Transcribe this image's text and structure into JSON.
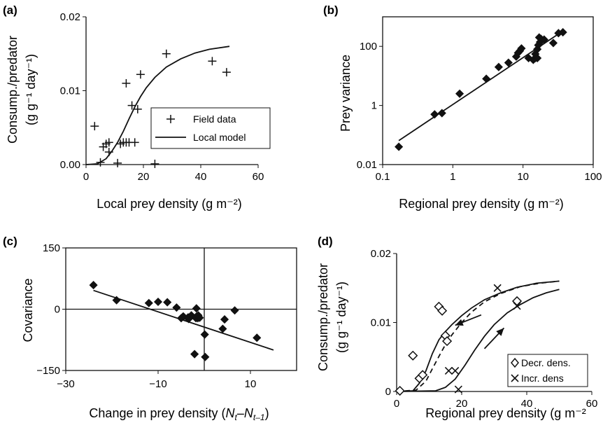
{
  "chart_data": [
    {
      "panel": "(a)",
      "type": "scatter",
      "xlabel": "Local prey density (g m⁻²)",
      "ylabel_line1": "Consump./predator",
      "ylabel_line2": "(g g⁻¹ day⁻¹)",
      "xlim": [
        0,
        60
      ],
      "ylim": [
        0,
        0.02
      ],
      "xticks": [
        "0",
        "20",
        "40",
        "60"
      ],
      "yticks": [
        "0.00",
        "0.01",
        "0.02"
      ],
      "legend_position": "lower-right",
      "series": [
        {
          "name": "Field data",
          "marker": "+",
          "x": [
            3,
            5,
            6,
            7,
            8,
            8,
            11,
            12,
            13,
            14,
            14,
            15,
            16,
            17,
            18,
            19,
            24,
            28,
            44,
            49
          ],
          "y": [
            0.0052,
            0.0003,
            0.0024,
            0.0028,
            0.0017,
            0.003,
            0.0002,
            0.0028,
            0.003,
            0.011,
            0.003,
            0.003,
            0.008,
            0.003,
            0.0075,
            0.0122,
            0.0001,
            0.015,
            0.014,
            0.0125
          ]
        },
        {
          "name": "Local model",
          "style": "line",
          "x": [
            0,
            4,
            7,
            9,
            11,
            13,
            15,
            17,
            19,
            21,
            24,
            28,
            33,
            38,
            43,
            50
          ],
          "y": [
            0.0,
            0.0001,
            0.0008,
            0.0018,
            0.003,
            0.0045,
            0.0062,
            0.0078,
            0.0092,
            0.0104,
            0.0118,
            0.0132,
            0.0143,
            0.0151,
            0.0156,
            0.016
          ]
        }
      ]
    },
    {
      "panel": "(b)",
      "type": "scatter",
      "xscale": "log",
      "yscale": "log",
      "xlabel": "Regional prey density (g m⁻²)",
      "ylabel": "Prey variance",
      "xlim": [
        0.1,
        100
      ],
      "ylim": [
        0.01,
        1000
      ],
      "xticks": [
        "0.1",
        "1",
        "10",
        "100"
      ],
      "yticks": [
        "0.01",
        "1",
        "100"
      ],
      "series": [
        {
          "name": "",
          "marker": "diamond",
          "x": [
            0.17,
            0.55,
            0.7,
            1.25,
            3.0,
            4.5,
            6.2,
            8.0,
            8.5,
            9.0,
            9.5,
            12,
            14,
            15,
            15,
            16,
            16,
            16.5,
            17,
            17.5,
            18,
            20,
            27,
            32,
            37
          ],
          "y": [
            0.04,
            0.5,
            0.55,
            2.5,
            8,
            20,
            28,
            45,
            60,
            70,
            85,
            40,
            35,
            40,
            55,
            40,
            80,
            110,
            200,
            140,
            180,
            170,
            130,
            280,
            300
          ]
        },
        {
          "name": "",
          "style": "line",
          "x": [
            0.17,
            37
          ],
          "y": [
            0.065,
            330
          ]
        }
      ]
    },
    {
      "panel": "(c)",
      "type": "scatter",
      "xlabel_prefix": "Change in prey density (",
      "xlabel_nt": "N",
      "xlabel_sub_t": "t",
      "xlabel_minus": "–",
      "xlabel_sub_t1": "t–1",
      "xlabel_close": ")",
      "ylabel": "Covariance",
      "xlim": [
        -30,
        20
      ],
      "ylim": [
        -150,
        150
      ],
      "xticks": [
        "−30",
        "−10",
        "10"
      ],
      "yticks": [
        "150",
        "0",
        "−150"
      ],
      "series": [
        {
          "name": "",
          "marker": "diamond",
          "x": [
            -24,
            -19,
            -12,
            -10,
            -8,
            -6,
            -5,
            -4.6,
            -4.5,
            -3.5,
            -3.4,
            -2.8,
            -2.1,
            -1.8,
            -1.7,
            -1.7,
            -1.4,
            -1.3,
            -1.0,
            0.1,
            0.2,
            4.0,
            4.4,
            6.6,
            11.4
          ],
          "y": [
            59,
            22,
            15,
            18,
            17,
            4,
            -22,
            -18,
            -18,
            -20,
            -24,
            -15,
            -110,
            -22,
            -18,
            2,
            -22,
            -15,
            -21,
            -62,
            -117,
            -48,
            -25,
            -3,
            -70
          ]
        },
        {
          "name": "",
          "style": "line",
          "x": [
            -24,
            15
          ],
          "y": [
            46,
            -100
          ]
        }
      ]
    },
    {
      "panel": "(d)",
      "type": "scatter",
      "xlabel": "Regional prey density (g m⁻²",
      "ylabel_line1": "Consump./predator",
      "ylabel_line2": "(g g⁻¹ day⁻¹)",
      "xlim": [
        0,
        60
      ],
      "ylim": [
        0,
        0.02
      ],
      "xticks": [
        "0",
        "20",
        "40",
        "60"
      ],
      "yticks": [
        "0",
        "0.01",
        "0.02"
      ],
      "legend_position": "lower-right",
      "series": [
        {
          "name": "Decr. dens.",
          "marker": "open-diamond",
          "x": [
            1,
            5,
            7,
            8,
            13,
            14,
            15,
            15.5,
            37
          ],
          "y": [
            0.0001,
            0.0052,
            0.0019,
            0.0024,
            0.0123,
            0.0117,
            0.0081,
            0.0073,
            0.0131
          ]
        },
        {
          "name": "Incr. dens",
          "marker": "x",
          "x": [
            16,
            18,
            19,
            31,
            37
          ],
          "y": [
            0.003,
            0.003,
            0.0003,
            0.015,
            0.0124
          ]
        },
        {
          "name": "",
          "style": "line",
          "x": [
            0,
            5,
            7,
            9,
            11,
            13,
            15,
            17,
            20,
            23,
            27,
            32,
            37,
            43,
            50
          ],
          "y": [
            0.0,
            0.0001,
            0.0012,
            0.003,
            0.0055,
            0.0075,
            0.0087,
            0.0097,
            0.011,
            0.0121,
            0.0133,
            0.0143,
            0.0151,
            0.0157,
            0.016
          ]
        },
        {
          "name": "",
          "style": "dashed",
          "x": [
            0,
            6,
            9,
            11,
            13,
            15,
            17,
            20,
            23,
            27,
            32,
            38,
            44,
            50
          ],
          "y": [
            0.0,
            0.0002,
            0.0015,
            0.0033,
            0.0051,
            0.0068,
            0.0082,
            0.01,
            0.0115,
            0.013,
            0.0142,
            0.0152,
            0.0157,
            0.016
          ]
        },
        {
          "name": "",
          "style": "line",
          "x": [
            0,
            12,
            15,
            18,
            21,
            24,
            27,
            30,
            34,
            38,
            42,
            46,
            50
          ],
          "y": [
            0.0,
            0.0001,
            0.0006,
            0.0018,
            0.0038,
            0.006,
            0.008,
            0.0097,
            0.0114,
            0.0126,
            0.0136,
            0.0143,
            0.0148
          ]
        }
      ],
      "arrows": [
        {
          "from": [
            26,
            0.0111
          ],
          "to": [
            18,
            0.0096
          ]
        },
        {
          "from": [
            27,
            0.0062
          ],
          "to": [
            33,
            0.0092
          ]
        }
      ]
    }
  ]
}
